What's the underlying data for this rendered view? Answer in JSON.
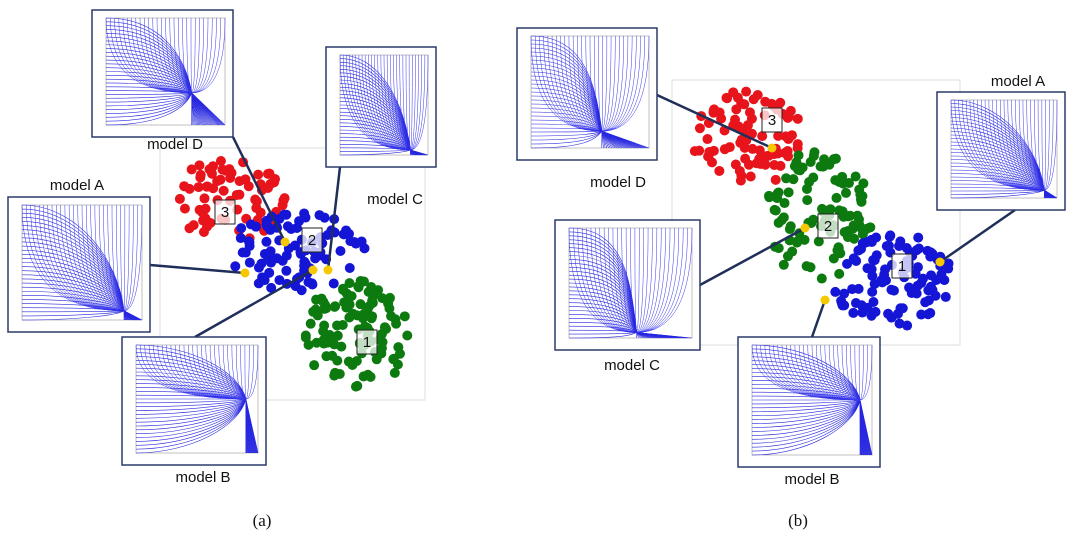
{
  "panels": [
    {
      "caption": "(a)",
      "models": [
        {
          "label": "model D"
        },
        {
          "label": "model C"
        },
        {
          "label": "model A"
        },
        {
          "label": "model B"
        }
      ],
      "clusters": [
        {
          "label": "3"
        },
        {
          "label": "2"
        },
        {
          "label": "1"
        }
      ]
    },
    {
      "caption": "(b)",
      "models": [
        {
          "label": "model D"
        },
        {
          "label": "model A"
        },
        {
          "label": "model C"
        },
        {
          "label": "model B"
        }
      ],
      "clusters": [
        {
          "label": "3"
        },
        {
          "label": "2"
        },
        {
          "label": "1"
        }
      ]
    }
  ]
}
